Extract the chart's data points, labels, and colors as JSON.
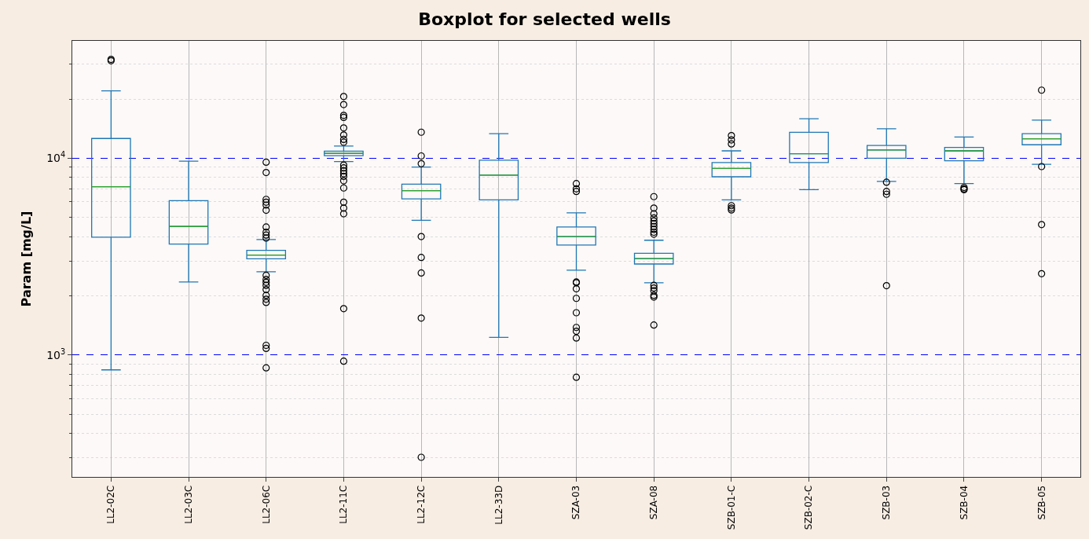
{
  "chart_data": {
    "type": "box",
    "title": "Boxplot for selected wells",
    "ylabel": "Param [mg/L]",
    "categories": [
      "LL2-02C",
      "LL2-03C",
      "LL2-06C",
      "LL2-11C",
      "LL2-12C",
      "LL2-33D",
      "SZA-03",
      "SZA-08",
      "SZB-01-C",
      "SZB-02-C",
      "SZB-03",
      "SZB-04",
      "SZB-05"
    ],
    "color": "#1f77b4",
    "boxes": [
      {
        "low": 840,
        "q1": 3970,
        "median": 7160,
        "q3": 12600,
        "high": 22000,
        "outliers": [
          31800,
          31300
        ]
      },
      {
        "low": 2350,
        "q1": 3660,
        "median": 4500,
        "q3": 6090,
        "high": 9670
      },
      {
        "low": 2650,
        "q1": 3080,
        "median": 3220,
        "q3": 3400,
        "high": 3860,
        "outliers": [
          9550,
          8460,
          6180,
          5980,
          5780,
          5440,
          4470,
          4210,
          4070,
          3930,
          2540,
          2420,
          2340,
          2260,
          2150,
          2010,
          1920,
          1850,
          1120,
          1080,
          860
        ]
      },
      {
        "low": 9610,
        "q1": 10300,
        "median": 10590,
        "q3": 10860,
        "high": 11540,
        "outliers": [
          20600,
          18750,
          16520,
          16130,
          14260,
          13120,
          12470,
          12060,
          9230,
          8930,
          8640,
          8350,
          8080,
          7680,
          7060,
          5980,
          5580,
          5220,
          1720,
          930
        ]
      },
      {
        "low": 4840,
        "q1": 6220,
        "median": 6850,
        "q3": 7380,
        "high": 9020,
        "outliers": [
          13560,
          10270,
          9380,
          4000,
          3130,
          2610,
          1540,
          302
        ]
      },
      {
        "low": 1230,
        "q1": 6140,
        "median": 8210,
        "q3": 9770,
        "high": 13330
      },
      {
        "low": 2700,
        "q1": 3620,
        "median": 4000,
        "q3": 4470,
        "high": 5280,
        "outliers": [
          7430,
          6990,
          6780,
          2350,
          2330,
          2170,
          1940,
          1640,
          1380,
          1320,
          1220,
          770
        ]
      },
      {
        "low": 2330,
        "q1": 2900,
        "median": 3090,
        "q3": 3290,
        "high": 3830,
        "outliers": [
          6380,
          5580,
          5220,
          4970,
          4800,
          4650,
          4500,
          4350,
          4210,
          4110,
          2260,
          2190,
          2120,
          2010,
          1970,
          1420
        ]
      },
      {
        "low": 6140,
        "q1": 8050,
        "median": 8870,
        "q3": 9510,
        "high": 10900,
        "outliers": [
          13030,
          12390,
          11820,
          5740,
          5580,
          5460
        ]
      },
      {
        "low": 6920,
        "q1": 9510,
        "median": 10550,
        "q3": 13550,
        "high": 15870
      },
      {
        "low": 7630,
        "q1": 10000,
        "median": 11020,
        "q3": 11620,
        "high": 14120,
        "outliers": [
          7550,
          6780,
          6560,
          2250
        ]
      },
      {
        "low": 7430,
        "q1": 9700,
        "median": 10900,
        "q3": 11360,
        "high": 12810,
        "outliers": [
          7110,
          6990,
          6920
        ]
      },
      {
        "low": 9310,
        "q1": 11710,
        "median": 12560,
        "q3": 13330,
        "high": 15610,
        "outliers": [
          22180,
          9070,
          4600,
          2590
        ]
      }
    ],
    "log": true,
    "ylim": [
      240,
      39500
    ],
    "yticks": [
      {
        "value": 300,
        "label": null
      },
      {
        "value": 400,
        "label": null
      },
      {
        "value": 500,
        "label": null
      },
      {
        "value": 600,
        "label": null
      },
      {
        "value": 700,
        "label": null
      },
      {
        "value": 800,
        "label": null
      },
      {
        "value": 900,
        "label": null
      },
      {
        "value": 1000,
        "label": "10$^{3}$"
      },
      {
        "value": 2000,
        "label": null
      },
      {
        "value": 3000,
        "label": null
      },
      {
        "value": 4000,
        "label": null
      },
      {
        "value": 5000,
        "label": null
      },
      {
        "value": 6000,
        "label": null
      },
      {
        "value": 7000,
        "label": null
      },
      {
        "value": 8000,
        "label": null
      },
      {
        "value": 9000,
        "label": null
      },
      {
        "value": 10000,
        "label": "10$^{4}$"
      },
      {
        "value": 20000,
        "label": null
      },
      {
        "value": 30000,
        "label": null
      }
    ],
    "grid": true,
    "marker": "circle"
  }
}
